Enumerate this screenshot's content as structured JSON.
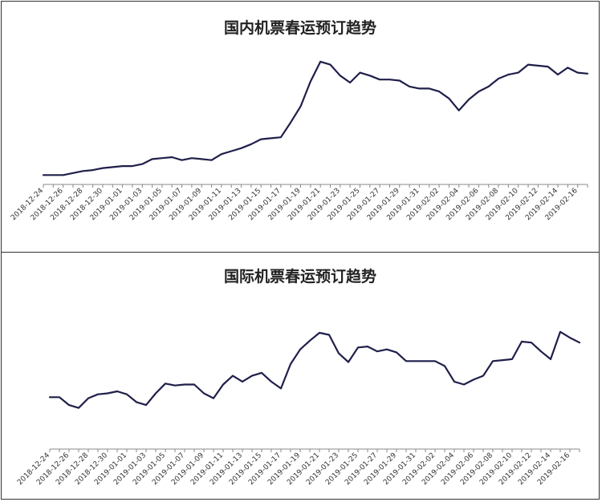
{
  "chart_data": [
    {
      "type": "line",
      "title": "国内机票春运预订趋势",
      "x": [
        "2018-12-24",
        "2018-12-25",
        "2018-12-26",
        "2018-12-27",
        "2018-12-28",
        "2018-12-29",
        "2018-12-30",
        "2018-12-31",
        "2019-01-01",
        "2019-01-02",
        "2019-01-03",
        "2019-01-04",
        "2019-01-05",
        "2019-01-06",
        "2019-01-07",
        "2019-01-08",
        "2019-01-09",
        "2019-01-10",
        "2019-01-11",
        "2019-01-12",
        "2019-01-13",
        "2019-01-14",
        "2019-01-15",
        "2019-01-16",
        "2019-01-17",
        "2019-01-18",
        "2019-01-19",
        "2019-01-20",
        "2019-01-21",
        "2019-01-22",
        "2019-01-23",
        "2019-01-24",
        "2019-01-25",
        "2019-01-26",
        "2019-01-27",
        "2019-01-28",
        "2019-01-29",
        "2019-01-30",
        "2019-01-31",
        "2019-02-01",
        "2019-02-02",
        "2019-02-03",
        "2019-02-04",
        "2019-02-05",
        "2019-02-06",
        "2019-02-07",
        "2019-02-08",
        "2019-02-09",
        "2019-02-10",
        "2019-02-11",
        "2019-02-12",
        "2019-02-13",
        "2019-02-14",
        "2019-02-15",
        "2019-02-16",
        "2019-02-17"
      ],
      "tick_labels": [
        "2018-12-24",
        "2018-12-26",
        "2018-12-28",
        "2018-12-30",
        "2019-01-01",
        "2019-01-03",
        "2019-01-05",
        "2019-01-07",
        "2019-01-09",
        "2019-01-11",
        "2019-01-13",
        "2019-01-15",
        "2019-01-17",
        "2019-01-19",
        "2019-01-21",
        "2019-01-23",
        "2019-01-25",
        "2019-01-27",
        "2019-01-29",
        "2019-01-31",
        "2019-02-02",
        "2019-02-04",
        "2019-02-06",
        "2019-02-08",
        "2019-02-10",
        "2019-02-12",
        "2019-02-14",
        "2019-02-16"
      ],
      "series": [
        {
          "values": [
            3,
            3,
            3,
            5,
            7,
            8,
            10,
            11,
            12,
            12,
            14,
            19,
            20,
            21,
            18,
            20,
            19,
            18,
            24,
            27,
            30,
            34,
            39,
            40,
            41,
            56,
            72,
            97,
            117,
            114,
            103,
            96,
            106,
            103,
            99,
            99,
            98,
            92,
            90,
            90,
            87,
            80,
            68,
            79,
            87,
            92,
            100,
            104,
            106,
            114,
            113,
            112,
            104,
            111,
            106,
            105
          ]
        }
      ],
      "ylim": [
        0,
        125
      ],
      "xlabel": "",
      "ylabel": "",
      "grid": false,
      "line_color": "#1f1f4a"
    },
    {
      "type": "line",
      "title": "国际机票春运预订趋势",
      "x": [
        "2018-12-24",
        "2018-12-25",
        "2018-12-26",
        "2018-12-27",
        "2018-12-28",
        "2018-12-29",
        "2018-12-30",
        "2018-12-31",
        "2019-01-01",
        "2019-01-02",
        "2019-01-03",
        "2019-01-04",
        "2019-01-05",
        "2019-01-06",
        "2019-01-07",
        "2019-01-08",
        "2019-01-09",
        "2019-01-10",
        "2019-01-11",
        "2019-01-12",
        "2019-01-13",
        "2019-01-14",
        "2019-01-15",
        "2019-01-16",
        "2019-01-17",
        "2019-01-18",
        "2019-01-19",
        "2019-01-20",
        "2019-01-21",
        "2019-01-22",
        "2019-01-23",
        "2019-01-24",
        "2019-01-25",
        "2019-01-26",
        "2019-01-27",
        "2019-01-28",
        "2019-01-29",
        "2019-01-30",
        "2019-01-31",
        "2019-02-01",
        "2019-02-02",
        "2019-02-03",
        "2019-02-04",
        "2019-02-05",
        "2019-02-06",
        "2019-02-07",
        "2019-02-08",
        "2019-02-09",
        "2019-02-10",
        "2019-02-11",
        "2019-02-12",
        "2019-02-13",
        "2019-02-14",
        "2019-02-15",
        "2019-02-16",
        "2019-02-17"
      ],
      "tick_labels": [
        "2018-12-24",
        "2018-12-26",
        "2018-12-28",
        "2018-12-30",
        "2019-01-01",
        "2019-01-03",
        "2019-01-05",
        "2019-01-07",
        "2019-01-09",
        "2019-01-11",
        "2019-01-13",
        "2019-01-15",
        "2019-01-17",
        "2019-01-19",
        "2019-01-21",
        "2019-01-23",
        "2019-01-25",
        "2019-01-27",
        "2019-01-29",
        "2019-01-31",
        "2019-02-02",
        "2019-02-04",
        "2019-02-06",
        "2019-02-08",
        "2019-02-10",
        "2019-02-12",
        "2019-02-14",
        "2019-02-16"
      ],
      "series": [
        {
          "values": [
            40,
            40,
            32,
            29,
            39,
            43,
            44,
            46,
            43,
            35,
            32,
            44,
            54,
            52,
            53,
            53,
            44,
            39,
            53,
            62,
            56,
            62,
            65,
            56,
            49,
            74,
            89,
            98,
            106,
            104,
            85,
            76,
            91,
            92,
            87,
            89,
            86,
            77,
            77,
            77,
            77,
            72,
            56,
            53,
            58,
            62,
            77,
            78,
            79,
            97,
            96,
            87,
            79,
            107,
            101,
            96
          ]
        }
      ],
      "ylim": [
        0,
        120
      ],
      "xlabel": "",
      "ylabel": "",
      "grid": false,
      "line_color": "#1f1f4a"
    }
  ]
}
